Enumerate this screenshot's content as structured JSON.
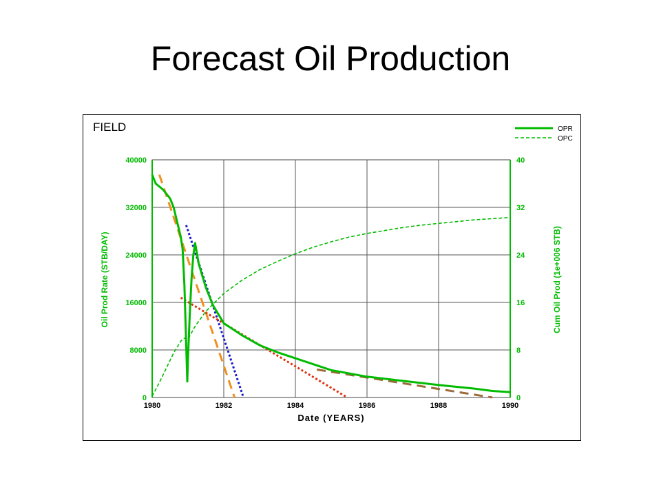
{
  "slide": {
    "title": "Forecast Oil Production"
  },
  "chart_data": {
    "type": "line",
    "title": "FIELD",
    "xlabel": "Date (YEARS)",
    "ylabel": "Oil Prod Rate (STB/DAY)",
    "y2label": "Cum Oil Prod (1e+006 STB)",
    "xlim": [
      1980,
      1990
    ],
    "ylim": [
      0,
      40000
    ],
    "y2lim": [
      0,
      40
    ],
    "xticks": [
      "1980",
      "1982",
      "1984",
      "1986",
      "1988",
      "1990"
    ],
    "yticks": [
      "0",
      "8000",
      "16000",
      "24000",
      "32000",
      "40000"
    ],
    "y2ticks": [
      "0",
      "8",
      "16",
      "24",
      "32",
      "40"
    ],
    "grid": true,
    "legend": [
      "OPR",
      "OPC"
    ],
    "legend_position": "top-right",
    "colors": {
      "data": "#00bb00",
      "orange": "#f0901f",
      "blue": "#1a1acc",
      "red": "#dd3311",
      "brown": "#9c6b3a"
    },
    "series": [
      {
        "name": "OPR",
        "axis": "left",
        "style": "solid",
        "x": [
          1980.0,
          1980.1,
          1980.3,
          1980.5,
          1980.6,
          1980.7,
          1980.8,
          1980.85,
          1980.9,
          1980.95,
          1980.98,
          1981.0,
          1981.05,
          1981.1,
          1981.15,
          1981.2,
          1981.3,
          1981.5,
          1981.7,
          1982.0,
          1982.5,
          1983.0,
          1983.5,
          1984.0,
          1984.5,
          1985.0,
          1986.0,
          1987.0,
          1988.0,
          1989.0,
          1989.5,
          1990.0
        ],
        "y": [
          37500,
          36000,
          35000,
          33500,
          32000,
          29500,
          27000,
          25000,
          19000,
          9000,
          2700,
          6500,
          14000,
          20000,
          24000,
          26000,
          22500,
          18500,
          15500,
          12500,
          10500,
          8800,
          7600,
          6600,
          5600,
          4600,
          3500,
          2800,
          2100,
          1500,
          1100,
          900
        ]
      },
      {
        "name": "OPC",
        "axis": "right",
        "style": "dashed",
        "x": [
          1980.0,
          1980.2,
          1980.4,
          1980.6,
          1980.8,
          1980.9,
          1981.0,
          1981.2,
          1981.5,
          1982.0,
          1982.5,
          1983.0,
          1983.5,
          1984.0,
          1984.5,
          1985.0,
          1985.5,
          1986.0,
          1986.5,
          1987.0,
          1987.5,
          1988.0,
          1988.5,
          1989.0,
          1989.5,
          1990.0
        ],
        "y": [
          0.2,
          2.5,
          5.0,
          7.5,
          9.5,
          10.0,
          9.8,
          12.0,
          14.5,
          17.5,
          19.7,
          21.5,
          22.9,
          24.2,
          25.3,
          26.2,
          27.0,
          27.6,
          28.1,
          28.6,
          29.0,
          29.3,
          29.6,
          29.9,
          30.1,
          30.3
        ]
      }
    ],
    "annotations": [
      {
        "color": "orange",
        "style": "long-dash",
        "axis": "left",
        "x": [
          1980.2,
          1982.3
        ],
        "y": [
          37500,
          0
        ]
      },
      {
        "color": "blue",
        "style": "dotted",
        "axis": "left",
        "x": [
          1980.95,
          1982.55
        ],
        "y": [
          29000,
          0
        ]
      },
      {
        "color": "red",
        "style": "dotted",
        "axis": "left",
        "x": [
          1980.8,
          1985.45
        ],
        "y": [
          16800,
          0
        ]
      },
      {
        "color": "brown",
        "style": "long-dash",
        "axis": "left",
        "x": [
          1984.6,
          1989.5
        ],
        "y": [
          4700,
          0
        ]
      }
    ]
  }
}
